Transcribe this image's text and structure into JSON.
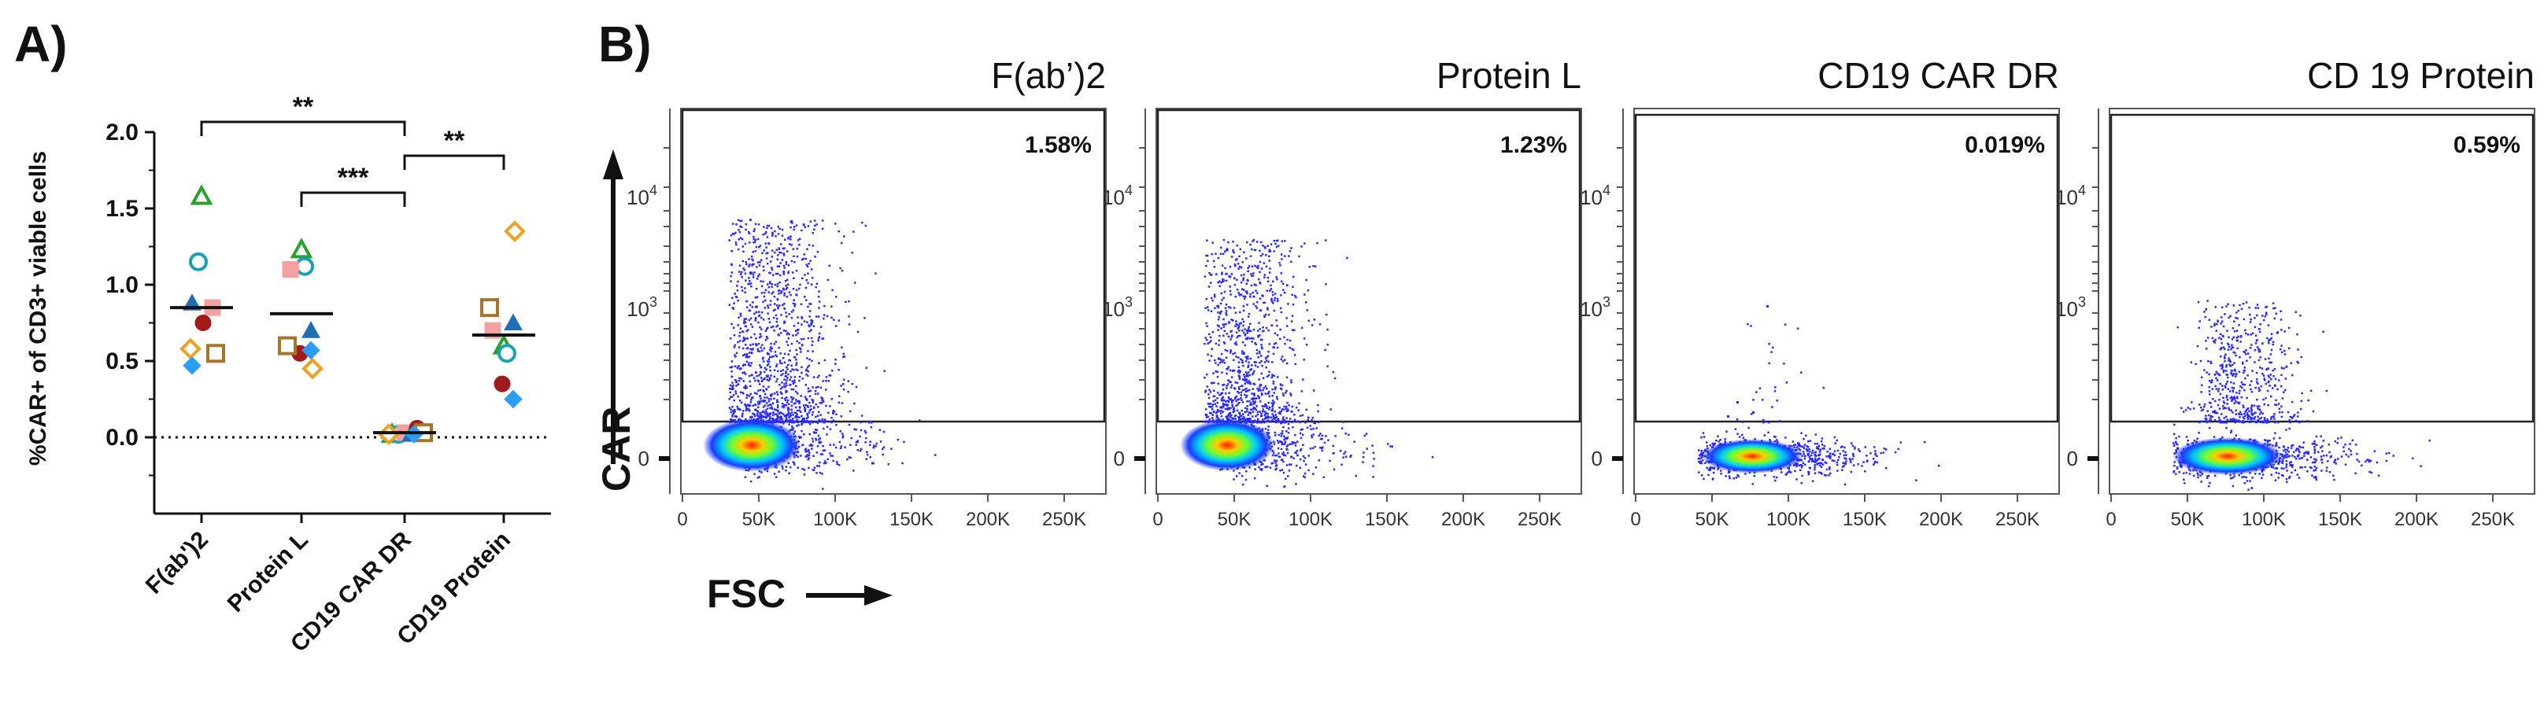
{
  "panel_a": {
    "label": "A)",
    "y_axis_label": "%CAR+ of CD3+ viable cells",
    "y_ticks": [
      "0.0",
      "0.5",
      "1.0",
      "1.5",
      "2.0"
    ],
    "significance": [
      {
        "from": "F(ab')2",
        "to": "CD19 CAR DR",
        "text": "**"
      },
      {
        "from": "Protein L",
        "to": "CD19 CAR DR",
        "text": "***"
      },
      {
        "from": "CD19 CAR DR",
        "to": "CD19 Protein",
        "text": "**"
      }
    ]
  },
  "panel_b": {
    "label": "B)",
    "x_axis_label": "FSC",
    "y_axis_label": "CAR",
    "x_ticks": [
      "0",
      "50K",
      "100K",
      "150K",
      "200K",
      "250K"
    ],
    "y_ticks": [
      "0",
      "10^3",
      "10^4"
    ],
    "y_tick_base": "10",
    "plots": [
      {
        "title": "F(ab’)2",
        "percent": "1.58%"
      },
      {
        "title": "Protein L",
        "percent": "1.23%"
      },
      {
        "title": "CD19 CAR DR",
        "percent": "0.019%"
      },
      {
        "title": "CD 19 Protein",
        "percent": "0.59%"
      }
    ]
  },
  "chart_data": [
    {
      "type": "scatter",
      "title": "",
      "xlabel": "",
      "ylabel": "%CAR+ of CD3+ viable cells",
      "ylim": [
        -0.5,
        2.0
      ],
      "categories": [
        "F(ab')2",
        "Protein L",
        "CD19 CAR DR",
        "CD19 Protein"
      ],
      "reference_line": {
        "y": 0.0,
        "style": "dotted"
      },
      "series": [
        {
          "marker": "triangle-open",
          "color": "#2ca02c",
          "values": [
            1.58,
            1.23,
            0.02,
            0.6
          ]
        },
        {
          "marker": "circle-open",
          "color": "#17a2b8",
          "values": [
            1.15,
            1.12,
            0.02,
            0.55
          ]
        },
        {
          "marker": "square",
          "color": "#f4a0a0",
          "values": [
            0.85,
            1.1,
            0.03,
            0.7
          ]
        },
        {
          "marker": "triangle",
          "color": "#1f6fb5",
          "values": [
            0.88,
            0.7,
            0.02,
            0.75
          ]
        },
        {
          "marker": "circle",
          "color": "#a01c1c",
          "values": [
            0.75,
            0.55,
            0.06,
            0.35
          ]
        },
        {
          "marker": "square-open",
          "color": "#a8742a",
          "values": [
            0.55,
            0.6,
            0.03,
            0.85
          ]
        },
        {
          "marker": "diamond-open",
          "color": "#f0a020",
          "values": [
            0.58,
            0.45,
            0.02,
            1.35
          ]
        },
        {
          "marker": "diamond",
          "color": "#2a9df4",
          "values": [
            0.47,
            0.57,
            0.02,
            0.25
          ]
        }
      ],
      "means": [
        0.85,
        0.81,
        0.03,
        0.67
      ]
    },
    {
      "type": "scatter",
      "subtype": "flow-cytometry-density",
      "title": "F(ab’)2",
      "xlabel": "FSC",
      "ylabel": "CAR",
      "xlim": [
        0,
        262144
      ],
      "gate_percent": 1.58
    },
    {
      "type": "scatter",
      "subtype": "flow-cytometry-density",
      "title": "Protein L",
      "xlabel": "FSC",
      "ylabel": "CAR",
      "xlim": [
        0,
        262144
      ],
      "gate_percent": 1.23
    },
    {
      "type": "scatter",
      "subtype": "flow-cytometry-density",
      "title": "CD19 CAR DR",
      "xlabel": "FSC",
      "ylabel": "CAR",
      "xlim": [
        0,
        262144
      ],
      "gate_percent": 0.019
    },
    {
      "type": "scatter",
      "subtype": "flow-cytometry-density",
      "title": "CD 19 Protein",
      "xlabel": "FSC",
      "ylabel": "CAR",
      "xlim": [
        0,
        262144
      ],
      "gate_percent": 0.59
    }
  ]
}
